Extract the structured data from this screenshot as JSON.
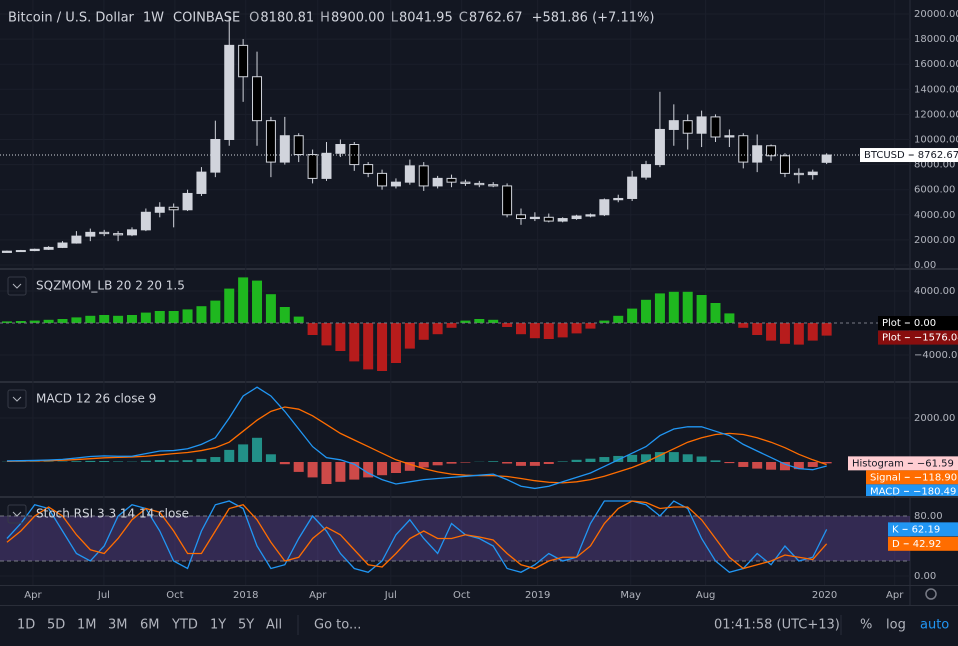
{
  "header": {
    "symbol": "Bitcoin / U.S. Dollar",
    "interval": "1W",
    "exchange": "COINBASE",
    "ohlc": [
      {
        "key": "O",
        "value": "8180.81"
      },
      {
        "key": "H",
        "value": "8900.00"
      },
      {
        "key": "L",
        "value": "8041.95"
      },
      {
        "key": "C",
        "value": "8762.67"
      }
    ],
    "change": "+581.86 (+7.11%)"
  },
  "chart_data": [
    {
      "type": "candlestick",
      "name": "BTCUSD",
      "last_label": "8762.67",
      "up_color": "#d1d4dc",
      "down_color": "#000000",
      "open": [
        1000,
        1100,
        1150,
        1250,
        1400,
        1750,
        2300,
        2600,
        2500,
        2400,
        2800,
        4200,
        4600,
        4400,
        5700,
        7400,
        10000,
        17500,
        15000,
        11500,
        8200,
        10300,
        8800,
        6900,
        8900,
        9600,
        8000,
        7300,
        6300,
        6600,
        7900,
        6300,
        6900,
        6600,
        6500,
        6400,
        6300,
        4000,
        3700,
        3800,
        3500,
        3700,
        3900,
        4000,
        5200,
        5300,
        7000,
        8000,
        10800,
        11500,
        10500,
        11800,
        10200,
        10300,
        8200,
        9500,
        8700,
        7300,
        7200,
        8180.81
      ],
      "high": [
        1150,
        1200,
        1300,
        1500,
        1900,
        2700,
        2900,
        2800,
        2700,
        3000,
        4500,
        5000,
        4900,
        6000,
        7800,
        11500,
        19800,
        18000,
        17000,
        11800,
        11800,
        10500,
        9200,
        9800,
        10000,
        9800,
        8200,
        7600,
        6900,
        8400,
        8200,
        7100,
        7200,
        6800,
        6700,
        6600,
        6500,
        4500,
        4200,
        4100,
        3800,
        4000,
        4100,
        5300,
        5600,
        7500,
        8300,
        13800,
        12800,
        12000,
        12300,
        12000,
        10800,
        10500,
        10400,
        9600,
        8900,
        7700,
        7600,
        8900
      ],
      "low": [
        980,
        1050,
        1100,
        1200,
        1350,
        1700,
        1900,
        2300,
        1900,
        2300,
        2700,
        3800,
        3000,
        4300,
        5500,
        7000,
        9500,
        13000,
        9500,
        7000,
        8000,
        8200,
        6500,
        6700,
        8600,
        7500,
        7000,
        6000,
        6100,
        6400,
        5900,
        6100,
        6200,
        6300,
        6200,
        6200,
        3800,
        3200,
        3500,
        3400,
        3400,
        3600,
        3800,
        3900,
        5000,
        5100,
        6800,
        7800,
        9500,
        9200,
        9400,
        9800,
        9400,
        7700,
        7400,
        8300,
        7000,
        6500,
        6800,
        8041.95
      ],
      "close": [
        1100,
        1150,
        1250,
        1400,
        1750,
        2300,
        2600,
        2500,
        2400,
        2800,
        4200,
        4600,
        4400,
        5700,
        7400,
        10000,
        17500,
        15000,
        11500,
        8200,
        10300,
        8800,
        6900,
        8900,
        9600,
        8000,
        7300,
        6300,
        6600,
        7900,
        6300,
        6900,
        6600,
        6500,
        6400,
        6300,
        4000,
        3700,
        3800,
        3500,
        3700,
        3900,
        4000,
        5200,
        5300,
        7000,
        8000,
        10800,
        11500,
        10500,
        11800,
        10200,
        10300,
        8200,
        9500,
        8700,
        7300,
        7200,
        7400,
        8762.67
      ],
      "ylim": [
        -240,
        21115
      ],
      "yticks": [
        {
          "value": 0,
          "label": "0.00"
        },
        {
          "value": 2000,
          "label": "2000.00"
        },
        {
          "value": 4000,
          "label": "4000.00"
        },
        {
          "value": 6000,
          "label": "6000.00"
        },
        {
          "value": 8000,
          "label": "8000.00"
        },
        {
          "value": 10000,
          "label": "10000.00"
        },
        {
          "value": 12000,
          "label": "12000.00"
        },
        {
          "value": 14000,
          "label": "14000.00"
        },
        {
          "value": 16000,
          "label": "16000.00"
        },
        {
          "value": 18000,
          "label": "18000.00"
        },
        {
          "value": 20000,
          "label": "20000.00"
        }
      ]
    },
    {
      "type": "histogram",
      "title": "SQZMOM_LB 20 2 20 1.5",
      "name": "Plot",
      "last_label": "−1576.04",
      "positive_color": "#1fb81f",
      "negative_color": "#b71c1c",
      "values": [
        200,
        250,
        300,
        400,
        500,
        700,
        900,
        1000,
        900,
        1000,
        1300,
        1500,
        1500,
        1700,
        2100,
        2800,
        4300,
        5700,
        5300,
        3600,
        2000,
        800,
        -1500,
        -2800,
        -3500,
        -4800,
        -5800,
        -6000,
        -5000,
        -3200,
        -2100,
        -1400,
        -600,
        300,
        500,
        400,
        -500,
        -1400,
        -1900,
        -2000,
        -1800,
        -1300,
        -700,
        300,
        900,
        1800,
        2900,
        3700,
        3900,
        3900,
        3500,
        2500,
        1200,
        -600,
        -1500,
        -2200,
        -2600,
        -2700,
        -2200,
        -1576.04
      ],
      "signal_level": {
        "name": "Plot",
        "value": 0,
        "label": "0.00"
      },
      "ylim": [
        -7250,
        6625
      ],
      "yticks": [
        {
          "value": 4000,
          "label": "4000.00"
        },
        {
          "value": -4000,
          "label": "−4000.00"
        }
      ]
    },
    {
      "type": "macd",
      "title": "MACD 12 26 close 9",
      "series": [
        {
          "name": "Histogram",
          "kind": "histogram",
          "color": "#26a69a",
          "negative_color": "#ef5350",
          "label_color": "#ffcdd2",
          "last_label": "−61.59",
          "values": [
            10,
            10,
            10,
            15,
            20,
            35,
            50,
            45,
            25,
            15,
            60,
            90,
            70,
            85,
            140,
            225,
            550,
            800,
            1100,
            350,
            -100,
            -450,
            -700,
            -1000,
            -900,
            -800,
            -700,
            -600,
            -500,
            -400,
            -250,
            -150,
            -75,
            -25,
            10,
            35,
            -70,
            -175,
            -175,
            -90,
            25,
            100,
            150,
            225,
            275,
            325,
            350,
            450,
            450,
            350,
            250,
            75,
            -50,
            -225,
            -300,
            -350,
            -375,
            -325,
            -225,
            -61.59
          ]
        },
        {
          "name": "Signal",
          "kind": "line",
          "color": "#ff6d00",
          "label_color": "#ff6d00",
          "last_label": "−118.90",
          "values": [
            30,
            40,
            50,
            60,
            80,
            110,
            150,
            190,
            210,
            230,
            260,
            320,
            380,
            430,
            520,
            650,
            900,
            1400,
            1900,
            2300,
            2500,
            2400,
            2100,
            1700,
            1300,
            1000,
            700,
            400,
            100,
            -100,
            -300,
            -450,
            -550,
            -600,
            -620,
            -620,
            -660,
            -750,
            -850,
            -920,
            -950,
            -900,
            -800,
            -650,
            -450,
            -250,
            0,
            300,
            600,
            900,
            1100,
            1250,
            1300,
            1250,
            1100,
            900,
            650,
            350,
            100,
            -118.9
          ]
        },
        {
          "name": "MACD",
          "kind": "line",
          "color": "#2196f3",
          "label_color": "#2196f3",
          "last_label": "−180.49",
          "values": [
            50,
            60,
            70,
            90,
            120,
            180,
            250,
            280,
            260,
            260,
            380,
            500,
            520,
            600,
            800,
            1100,
            2000,
            3000,
            3400,
            3000,
            2300,
            1500,
            700,
            200,
            100,
            -100,
            -500,
            -800,
            -1000,
            -900,
            -800,
            -750,
            -700,
            -650,
            -600,
            -550,
            -800,
            -1100,
            -1200,
            -1100,
            -900,
            -700,
            -500,
            -200,
            100,
            400,
            700,
            1200,
            1500,
            1600,
            1600,
            1400,
            1200,
            800,
            500,
            200,
            -100,
            -300,
            -350,
            -180.49
          ]
        }
      ],
      "ylim": [
        -1545,
        3590
      ],
      "yticks": [
        {
          "value": 2000,
          "label": "2000.00"
        }
      ]
    },
    {
      "type": "stoch",
      "title": "Stoch RSI 3 3 14 14 close",
      "band": [
        20,
        80
      ],
      "band_color": "#7e57c2",
      "series": [
        {
          "name": "K",
          "color": "#2196f3",
          "last_label": "62.19",
          "values": [
            50,
            70,
            95,
            90,
            60,
            30,
            20,
            40,
            80,
            95,
            90,
            60,
            20,
            10,
            60,
            95,
            100,
            90,
            40,
            10,
            15,
            50,
            80,
            60,
            30,
            10,
            5,
            20,
            55,
            75,
            50,
            30,
            70,
            55,
            50,
            40,
            10,
            5,
            15,
            30,
            20,
            25,
            70,
            100,
            100,
            100,
            95,
            80,
            100,
            90,
            50,
            20,
            5,
            10,
            30,
            15,
            40,
            20,
            25,
            62.19
          ]
        },
        {
          "name": "D",
          "color": "#ff6d00",
          "last_label": "42.92",
          "values": [
            45,
            60,
            80,
            92,
            80,
            55,
            35,
            30,
            50,
            75,
            90,
            85,
            60,
            30,
            30,
            60,
            90,
            95,
            75,
            45,
            20,
            25,
            50,
            65,
            55,
            35,
            15,
            12,
            30,
            50,
            60,
            50,
            50,
            55,
            52,
            48,
            30,
            15,
            10,
            20,
            25,
            25,
            40,
            70,
            90,
            100,
            98,
            90,
            92,
            92,
            75,
            50,
            25,
            10,
            15,
            20,
            28,
            25,
            22,
            42.92
          ]
        }
      ],
      "ylim": [
        -12,
        104
      ],
      "yticks": [
        {
          "value": 80,
          "label": "80.00"
        },
        {
          "value": 0,
          "label": "0.00"
        }
      ],
      "xlim": [
        -0.5,
        65
      ],
      "xticks": [
        {
          "value": 1.87,
          "label": "Apr"
        },
        {
          "value": 6.98,
          "label": "Jul"
        },
        {
          "value": 12.09,
          "label": "Oct"
        },
        {
          "value": 17.19,
          "label": "2018"
        },
        {
          "value": 22.37,
          "label": "Apr"
        },
        {
          "value": 27.63,
          "label": "Jul"
        },
        {
          "value": 32.73,
          "label": "Oct"
        },
        {
          "value": 38.2,
          "label": "2019"
        },
        {
          "value": 44.9,
          "label": "May"
        },
        {
          "value": 50.29,
          "label": "Aug"
        },
        {
          "value": 58.85,
          "label": "2020"
        },
        {
          "value": 63.9,
          "label": "Apr"
        }
      ]
    }
  ],
  "toolbar": {
    "ranges": [
      "1D",
      "5D",
      "1M",
      "3M",
      "6M",
      "YTD",
      "1Y",
      "5Y",
      "All"
    ],
    "goto": "Go to...",
    "clock": "01:41:58 (UTC+13)",
    "options": [
      "%",
      "log",
      "auto"
    ]
  }
}
